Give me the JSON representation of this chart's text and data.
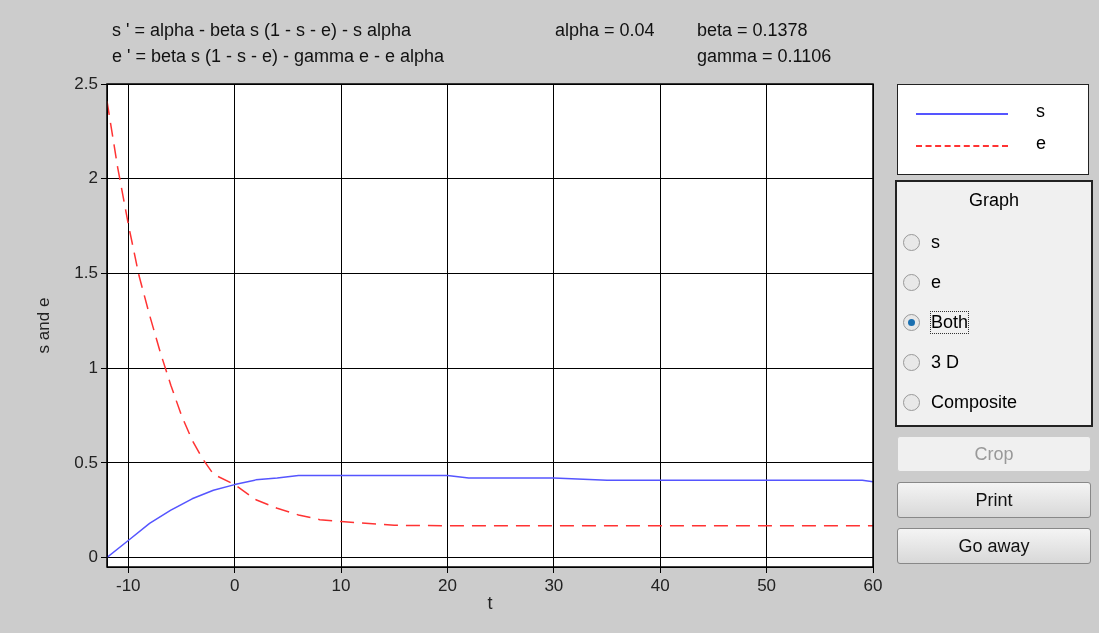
{
  "chart_data": {
    "type": "line",
    "xlabel": "t",
    "ylabel": "s and e",
    "xlim": [
      -12,
      60
    ],
    "ylim": [
      -0.05,
      2.5
    ],
    "xticks": [
      -10,
      0,
      10,
      20,
      30,
      40,
      50,
      60
    ],
    "yticks": [
      0,
      0.5,
      1,
      1.5,
      2,
      2.5
    ],
    "grid": true,
    "legend": "right",
    "marker": "none",
    "series": [
      {
        "name": "s",
        "color": "#5555ff",
        "line_style": "solid",
        "x": [
          -12,
          -10,
          -8,
          -6,
          -4,
          -2,
          0,
          2,
          4,
          6,
          20,
          22,
          30,
          35,
          40,
          50,
          59,
          60
        ],
        "values": [
          0,
          0.09,
          0.18,
          0.25,
          0.31,
          0.355,
          0.385,
          0.41,
          0.42,
          0.433,
          0.433,
          0.42,
          0.42,
          0.408,
          0.408,
          0.408,
          0.408,
          0.4
        ]
      },
      {
        "name": "e",
        "color": "#ff3333",
        "line_style": "dashed",
        "x": [
          -12,
          -11,
          -10,
          -9,
          -8,
          -7,
          -6,
          -5,
          -4,
          -3,
          -2,
          0,
          2,
          4,
          6,
          8,
          10,
          15,
          20,
          30,
          40,
          50,
          60
        ],
        "values": [
          2.41,
          2.06,
          1.76,
          1.49,
          1.28,
          1.085,
          0.91,
          0.75,
          0.62,
          0.52,
          0.44,
          0.385,
          0.305,
          0.26,
          0.225,
          0.2,
          0.19,
          0.17,
          0.168,
          0.168,
          0.168,
          0.168,
          0.168
        ]
      }
    ],
    "annotations": [
      "s ' = alpha - beta s (1 - s - e) - s alpha",
      "alpha = 0.04",
      "beta = 0.1378",
      "e ' = beta s (1 - s - e) - gamma e - e alpha",
      "gamma = 0.1106",
      "Graph",
      "s",
      "e",
      "Both",
      "3 D",
      "Composite",
      "Crop",
      "Print",
      "Go away"
    ]
  }
}
